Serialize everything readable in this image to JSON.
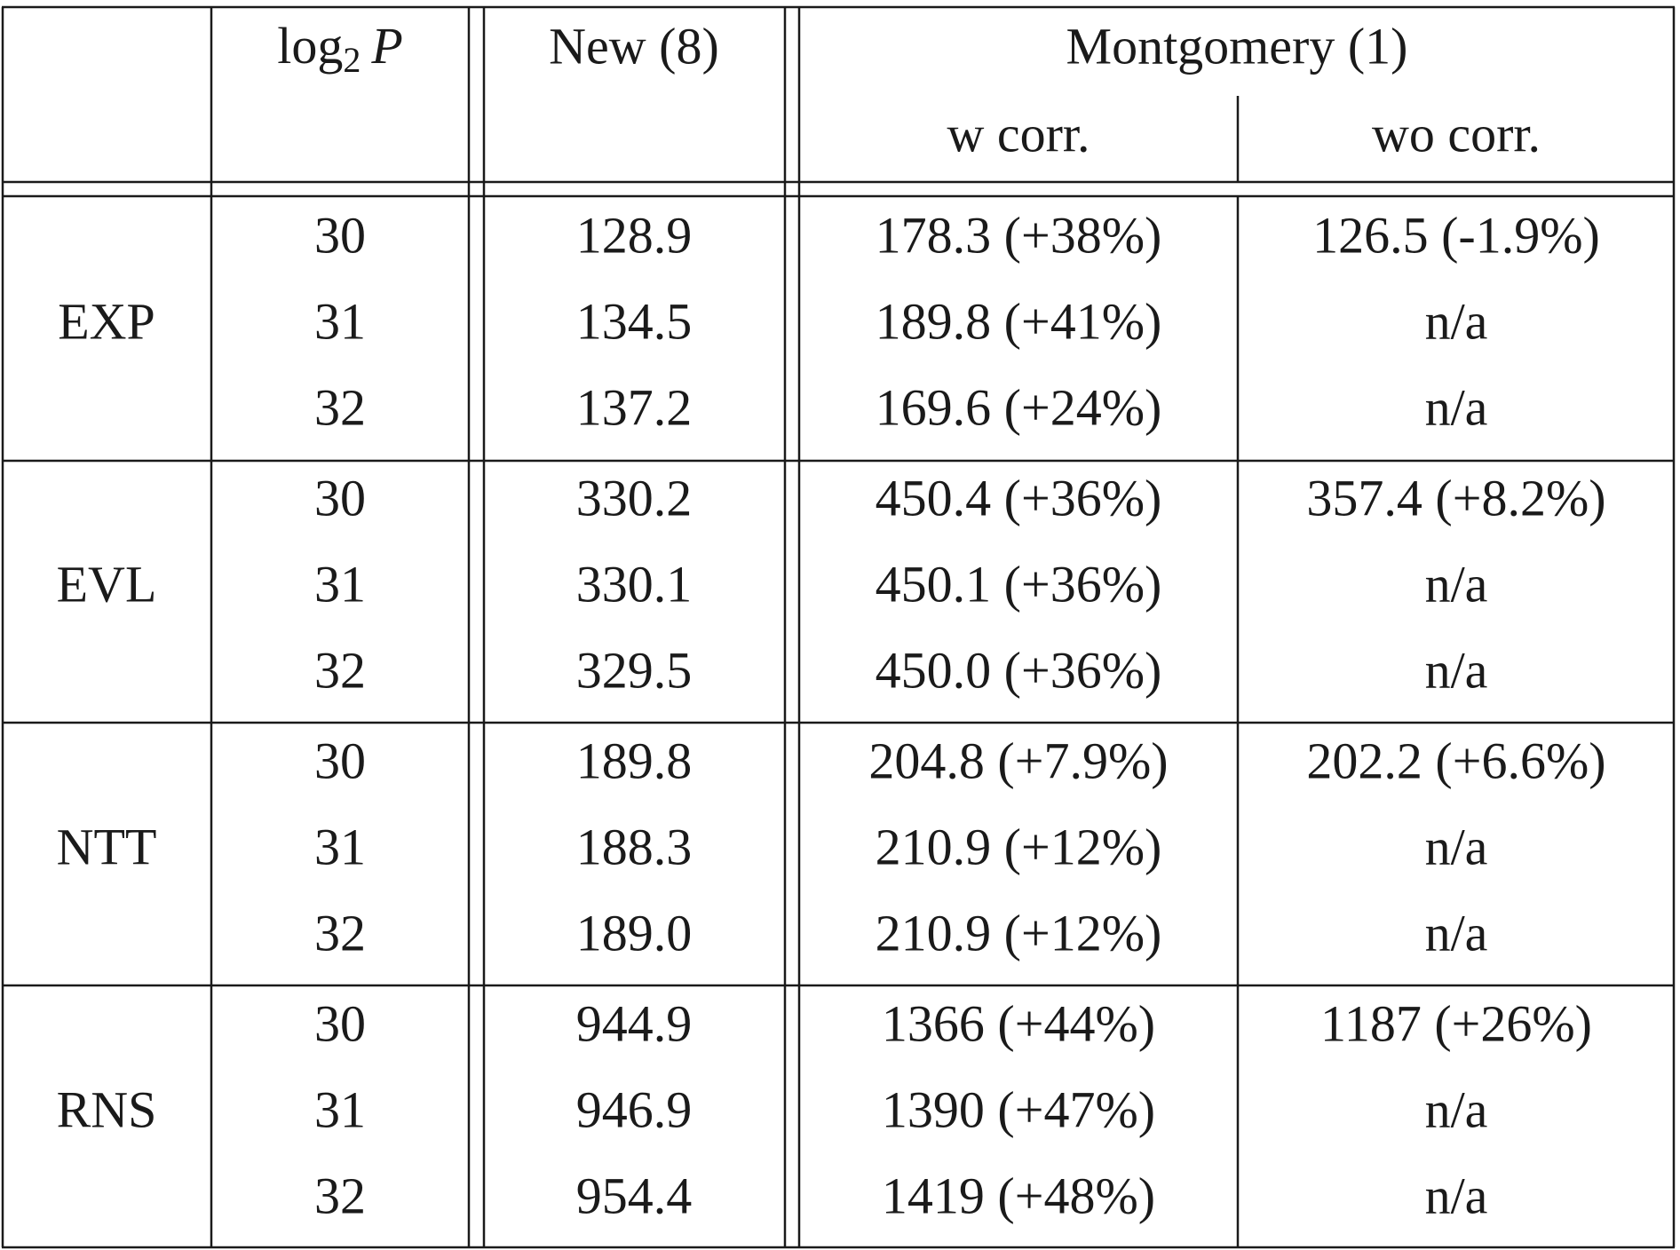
{
  "table": {
    "header": {
      "log_label": {
        "base": "log",
        "sub": "2",
        "var": "P"
      },
      "new": "New (8)",
      "montgomery": "Montgomery (1)",
      "w_corr": "w corr.",
      "wo_corr": "wo corr."
    },
    "groups": [
      {
        "name": "EXP",
        "rows": [
          {
            "log2p": "30",
            "new": "128.9",
            "w": "178.3 (+38%)",
            "wo": "126.5 (-1.9%)"
          },
          {
            "log2p": "31",
            "new": "134.5",
            "w": "189.8 (+41%)",
            "wo": "n/a"
          },
          {
            "log2p": "32",
            "new": "137.2",
            "w": "169.6 (+24%)",
            "wo": "n/a"
          }
        ]
      },
      {
        "name": "EVL",
        "rows": [
          {
            "log2p": "30",
            "new": "330.2",
            "w": "450.4 (+36%)",
            "wo": "357.4 (+8.2%)"
          },
          {
            "log2p": "31",
            "new": "330.1",
            "w": "450.1 (+36%)",
            "wo": "n/a"
          },
          {
            "log2p": "32",
            "new": "329.5",
            "w": "450.0 (+36%)",
            "wo": "n/a"
          }
        ]
      },
      {
        "name": "NTT",
        "rows": [
          {
            "log2p": "30",
            "new": "189.8",
            "w": "204.8 (+7.9%)",
            "wo": "202.2 (+6.6%)"
          },
          {
            "log2p": "31",
            "new": "188.3",
            "w": "210.9 (+12%)",
            "wo": "n/a"
          },
          {
            "log2p": "32",
            "new": "189.0",
            "w": "210.9 (+12%)",
            "wo": "n/a"
          }
        ]
      },
      {
        "name": "RNS",
        "rows": [
          {
            "log2p": "30",
            "new": "944.9",
            "w": "1366 (+44%)",
            "wo": "1187 (+26%)"
          },
          {
            "log2p": "31",
            "new": "946.9",
            "w": "1390 (+47%)",
            "wo": "n/a"
          },
          {
            "log2p": "32",
            "new": "954.4",
            "w": "1419 (+48%)",
            "wo": "n/a"
          }
        ]
      }
    ]
  }
}
